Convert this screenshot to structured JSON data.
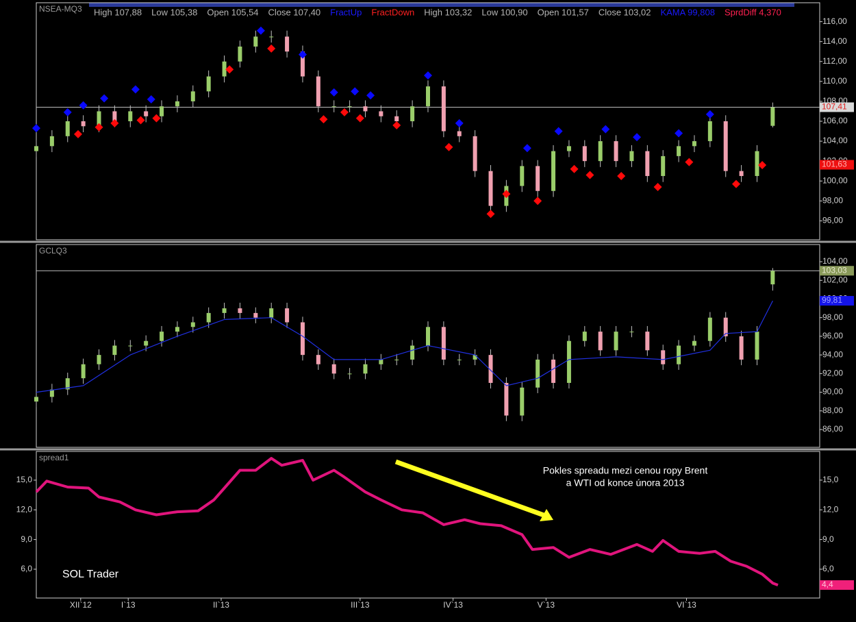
{
  "chart_data": [
    {
      "type": "candlestick",
      "title": "NSEA-MQ3",
      "legend": [
        {
          "text": "High 107,88",
          "color": "#b4b4b4"
        },
        {
          "text": "Low 105,38",
          "color": "#b4b4b4"
        },
        {
          "text": "Open 105,54",
          "color": "#b4b4b4"
        },
        {
          "text": "Close 107,40",
          "color": "#b4b4b4"
        },
        {
          "text": "FractUp",
          "color": "#1a1aff"
        },
        {
          "text": "FractDown",
          "color": "#ff2020"
        },
        {
          "text": "High 103,32",
          "color": "#b4b4b4"
        },
        {
          "text": "Low 100,90",
          "color": "#b4b4b4"
        },
        {
          "text": "Open 101,57",
          "color": "#b4b4b4"
        },
        {
          "text": "Close 103,02",
          "color": "#b4b4b4"
        },
        {
          "text": "KAMA 99,808",
          "color": "#1a1aff"
        },
        {
          "text": "SprdDiff 4,370",
          "color": "#ff2050"
        }
      ],
      "x": [
        0,
        3,
        6,
        9,
        12,
        15,
        18,
        21,
        24,
        27,
        30,
        33,
        36,
        39,
        42,
        45,
        48,
        51,
        54,
        57,
        60,
        63,
        66,
        69,
        72,
        75,
        78,
        81,
        84,
        87,
        90,
        93,
        96,
        99,
        102,
        105,
        108,
        111,
        114,
        117,
        120,
        123,
        126,
        129,
        132,
        135,
        138,
        141
      ],
      "open": [
        103,
        103.5,
        104.5,
        106,
        105.5,
        107,
        106,
        107,
        106.5,
        107.5,
        108,
        109,
        110.5,
        112,
        113.5,
        114.5,
        114.5,
        113,
        110.5,
        107.5,
        107.5,
        107.5,
        107,
        106.5,
        106,
        107.5,
        109.5,
        105,
        104.5,
        101,
        97.5,
        99.5,
        101.5,
        99,
        103,
        103.5,
        102,
        104,
        102,
        103,
        100.5,
        102.5,
        103.5,
        104,
        106,
        101,
        100.5,
        105.54
      ],
      "high": [
        104.1,
        105.1,
        106.6,
        106.6,
        107.6,
        107.6,
        107.6,
        107.6,
        108.1,
        108.6,
        109.6,
        111.1,
        112.6,
        114.1,
        115.1,
        115.1,
        115.1,
        113.6,
        111.1,
        108.1,
        108.1,
        108.1,
        107.6,
        107.1,
        108.1,
        110.1,
        110.1,
        105.6,
        105.1,
        101.6,
        100.1,
        102.1,
        102.1,
        103.6,
        104.1,
        104.1,
        104.6,
        104.6,
        103.6,
        103.6,
        103.1,
        104.1,
        104.6,
        106.6,
        106.6,
        101.6,
        103.6,
        107.88
      ],
      "low": [
        102.4,
        102.9,
        103.9,
        104.9,
        104.9,
        105.4,
        105.4,
        105.9,
        105.9,
        106.9,
        107.4,
        108.4,
        109.9,
        111.4,
        112.9,
        113.9,
        112.4,
        109.9,
        106.9,
        106.9,
        106.9,
        106.4,
        105.9,
        105.4,
        105.4,
        106.9,
        104.4,
        103.9,
        100.4,
        96.9,
        96.9,
        98.9,
        98.4,
        98.4,
        102.4,
        101.4,
        101.4,
        101.4,
        101.4,
        99.9,
        99.9,
        101.9,
        102.9,
        103.4,
        100.4,
        99.9,
        99.9,
        105.38
      ],
      "close": [
        103.5,
        104.5,
        106,
        105.5,
        107,
        106,
        107,
        106.5,
        107.5,
        108,
        109,
        110.5,
        112,
        113.5,
        114.5,
        114.5,
        113,
        110.5,
        107.5,
        107.5,
        107.5,
        107,
        106.5,
        106,
        107.5,
        109.5,
        105,
        104.5,
        101,
        97.5,
        99.5,
        101.5,
        99,
        103,
        103.5,
        102,
        104,
        102,
        103,
        100.5,
        102.5,
        103.5,
        104,
        106,
        101,
        100.5,
        103,
        107.4
      ],
      "up_color": "#9acd6a",
      "down_color": "#f0a0b0",
      "wick_color": "#c0c0c0",
      "markers": [
        {
          "color": "#0a0aff",
          "x": [
            0,
            6,
            9,
            13,
            19,
            22,
            43,
            51,
            57,
            61,
            64,
            75,
            81,
            94,
            100,
            109,
            115,
            123,
            129
          ],
          "values": [
            105.3,
            106.9,
            107.6,
            108.3,
            109.2,
            108.2,
            115.1,
            112.7,
            108.9,
            109.0,
            108.6,
            110.6,
            105.8,
            103.3,
            105.0,
            105.2,
            104.4,
            104.8,
            106.7
          ]
        },
        {
          "color": "#ff0a0a",
          "x": [
            8,
            12,
            15,
            20,
            23,
            37,
            45,
            55,
            59,
            62,
            69,
            79,
            87,
            90,
            96,
            103,
            106,
            112,
            119,
            125,
            134,
            139
          ],
          "values": [
            104.7,
            105.4,
            105.8,
            106.1,
            106.3,
            111.2,
            113.3,
            106.2,
            106.9,
            106.3,
            105.6,
            103.4,
            96.7,
            98.7,
            98.0,
            101.2,
            100.6,
            100.5,
            99.4,
            101.9,
            99.7,
            101.6
          ]
        }
      ],
      "hline": 107.41,
      "price_labels": [
        {
          "value": 107.41,
          "label": "107,41",
          "color": "#d8d8d8",
          "text_color": "#e02020"
        },
        {
          "value": 101.63,
          "label": "101,63",
          "color": "#ee1010",
          "text_color": "#ffb0b0"
        }
      ],
      "xlim": [
        0,
        150
      ],
      "ylim": [
        94.1,
        117.9
      ],
      "yaxis_sides": [
        "right"
      ],
      "yticks": [
        {
          "value": 96,
          "label": "96,00"
        },
        {
          "value": 98,
          "label": "98,00"
        },
        {
          "value": 100,
          "label": "100,00"
        },
        {
          "value": 102,
          "label": "102,00"
        },
        {
          "value": 104,
          "label": "104,00"
        },
        {
          "value": 106,
          "label": "106,00"
        },
        {
          "value": 108,
          "label": "108,00"
        },
        {
          "value": 110,
          "label": "110,00"
        },
        {
          "value": 112,
          "label": "112,00"
        },
        {
          "value": 114,
          "label": "114,00"
        },
        {
          "value": 116,
          "label": "116,00"
        }
      ]
    },
    {
      "type": "candlestick",
      "title": "GCLQ3",
      "x": [
        0,
        3,
        6,
        9,
        12,
        15,
        18,
        21,
        24,
        27,
        30,
        33,
        36,
        39,
        42,
        45,
        48,
        51,
        54,
        57,
        60,
        63,
        66,
        69,
        72,
        75,
        78,
        81,
        84,
        87,
        90,
        93,
        96,
        99,
        102,
        105,
        108,
        111,
        114,
        117,
        120,
        123,
        126,
        129,
        132,
        135,
        138,
        141
      ],
      "open": [
        89,
        89.5,
        90.3,
        91.5,
        93,
        94,
        95,
        95,
        95.5,
        96.5,
        97,
        97.5,
        98.5,
        99,
        98.5,
        98,
        99,
        97.5,
        94,
        93,
        92,
        92,
        93,
        93.5,
        93.5,
        95,
        97,
        93.5,
        93.5,
        94,
        91,
        87.5,
        90.5,
        93.5,
        91,
        95.5,
        96.5,
        94.5,
        96.5,
        96.5,
        94.5,
        93,
        95,
        95.5,
        98,
        96,
        93.5,
        101.57
      ],
      "high": [
        90.1,
        90.9,
        92.1,
        93.6,
        94.6,
        95.6,
        95.6,
        96.1,
        97.1,
        97.6,
        98.1,
        99.1,
        99.6,
        99.6,
        99.1,
        99.6,
        99.6,
        98.1,
        94.6,
        93.6,
        92.6,
        93.6,
        94.1,
        94.1,
        95.6,
        97.6,
        97.6,
        94.1,
        94.6,
        94.6,
        91.6,
        91.1,
        94.1,
        94.1,
        96.1,
        97.1,
        97.1,
        97.1,
        97.1,
        97.1,
        95.1,
        95.6,
        96.1,
        98.6,
        98.6,
        96.6,
        97.1,
        103.32
      ],
      "low": [
        88.4,
        88.9,
        89.7,
        90.9,
        92.4,
        93.4,
        94.4,
        94.4,
        94.9,
        95.9,
        96.4,
        96.9,
        97.9,
        97.9,
        97.4,
        97.4,
        96.9,
        93.4,
        92.4,
        91.4,
        91.4,
        91.4,
        92.4,
        92.9,
        92.9,
        94.4,
        92.9,
        92.9,
        92.9,
        90.4,
        86.9,
        86.9,
        89.9,
        90.4,
        90.4,
        94.9,
        93.9,
        93.9,
        95.9,
        93.9,
        92.4,
        92.4,
        94.4,
        94.9,
        95.4,
        92.9,
        92.9,
        100.9
      ],
      "close": [
        89.5,
        90.3,
        91.5,
        93,
        94,
        95,
        95,
        95.5,
        96.5,
        97,
        97.5,
        98.5,
        99,
        98.5,
        98,
        99,
        97.5,
        94,
        93,
        92,
        92,
        93,
        93.5,
        93.5,
        95,
        97,
        93.5,
        93.5,
        94,
        91,
        87.5,
        90.5,
        93.5,
        91,
        95.5,
        96.5,
        94.5,
        96.5,
        96.5,
        94.5,
        93,
        95,
        95.5,
        98,
        96,
        93.5,
        96.5,
        103.02
      ],
      "up_color": "#9acd6a",
      "down_color": "#f0a0b0",
      "wick_color": "#c0c0c0",
      "lines": [
        {
          "color": "#2030e0",
          "width": 1.2,
          "x": [
            0,
            9,
            18,
            27,
            36,
            45,
            51,
            57,
            66,
            75,
            84,
            90,
            96,
            102,
            111,
            120,
            129,
            132,
            138,
            141
          ],
          "values": [
            90,
            90.7,
            94,
            96,
            97.8,
            98,
            96,
            93.5,
            93.5,
            95,
            94,
            90.7,
            91.5,
            93.5,
            93.8,
            93.5,
            94.5,
            96.3,
            96.5,
            99.8
          ]
        }
      ],
      "hline": 103.03,
      "price_labels": [
        {
          "value": 103.03,
          "label": "103,03",
          "color": "#8a9a5a",
          "text_color": "#e8e8d0"
        },
        {
          "value": 99.81,
          "label": "99,81",
          "color": "#1414e8",
          "text_color": "#a0a0ff"
        }
      ],
      "xlim": [
        0,
        150
      ],
      "ylim": [
        84.09,
        105.84
      ],
      "yaxis_sides": [
        "right"
      ],
      "yticks": [
        {
          "value": 86,
          "label": "86,00"
        },
        {
          "value": 88,
          "label": "88,00"
        },
        {
          "value": 90,
          "label": "90,00"
        },
        {
          "value": 92,
          "label": "92,00"
        },
        {
          "value": 94,
          "label": "94,00"
        },
        {
          "value": 96,
          "label": "96,00"
        },
        {
          "value": 98,
          "label": "98,00"
        },
        {
          "value": 100,
          "label": "100,00"
        },
        {
          "value": 102,
          "label": "102,00"
        },
        {
          "value": 104,
          "label": "104,00"
        }
      ]
    },
    {
      "type": "line",
      "title": "spread1",
      "lines": [
        {
          "color": "#e0147c",
          "width": 4,
          "x": [
            0,
            2,
            6,
            10,
            12,
            16,
            19,
            23,
            27,
            31,
            34,
            36,
            39,
            42,
            44,
            45,
            47,
            51,
            53,
            57,
            59,
            63,
            66,
            70,
            74,
            78,
            82,
            85,
            89,
            93,
            95,
            99,
            102,
            106,
            110,
            115,
            118,
            120,
            123,
            127,
            130,
            133,
            136,
            139,
            141,
            142
          ],
          "values": [
            13.8,
            14.9,
            14.3,
            14.2,
            13.3,
            12.8,
            12.0,
            11.5,
            11.8,
            11.9,
            13.0,
            14.2,
            16.0,
            16.0,
            16.8,
            17.2,
            16.5,
            17.0,
            15.0,
            16.0,
            15.3,
            13.8,
            13.0,
            12.0,
            11.7,
            10.5,
            11.0,
            10.6,
            10.4,
            9.5,
            8.0,
            8.2,
            7.2,
            8.0,
            7.5,
            8.5,
            7.8,
            8.9,
            7.8,
            7.6,
            7.8,
            6.8,
            6.3,
            5.5,
            4.6,
            4.4
          ]
        }
      ],
      "price_labels": [
        {
          "value": 4.4,
          "label": "4,4",
          "color": "#f0207a",
          "text_color": "#ffc0d8"
        }
      ],
      "annotations": [
        "Pokles spreadu mezi cenou ropy Brent",
        "a WTI od konce února 2013"
      ],
      "watermark": "SOL Trader",
      "xlim": [
        0,
        150
      ],
      "ylim": [
        3.09,
        17.9
      ],
      "yaxis_sides": [
        "left",
        "right"
      ],
      "yticks": [
        {
          "value": 6,
          "label": "6,0"
        },
        {
          "value": 9,
          "label": "9,0"
        },
        {
          "value": 12,
          "label": "12,0"
        },
        {
          "value": 15,
          "label": "15,0"
        }
      ],
      "xticks": [
        {
          "value": 8.5,
          "label": "XII`12"
        },
        {
          "value": 17.6,
          "label": "I`13"
        },
        {
          "value": 35.4,
          "label": "II`13"
        },
        {
          "value": 62,
          "label": "III`13"
        },
        {
          "value": 79.8,
          "label": "IV`13"
        },
        {
          "value": 97.6,
          "label": "V`13"
        },
        {
          "value": 124.5,
          "label": "VI`13"
        }
      ]
    }
  ]
}
